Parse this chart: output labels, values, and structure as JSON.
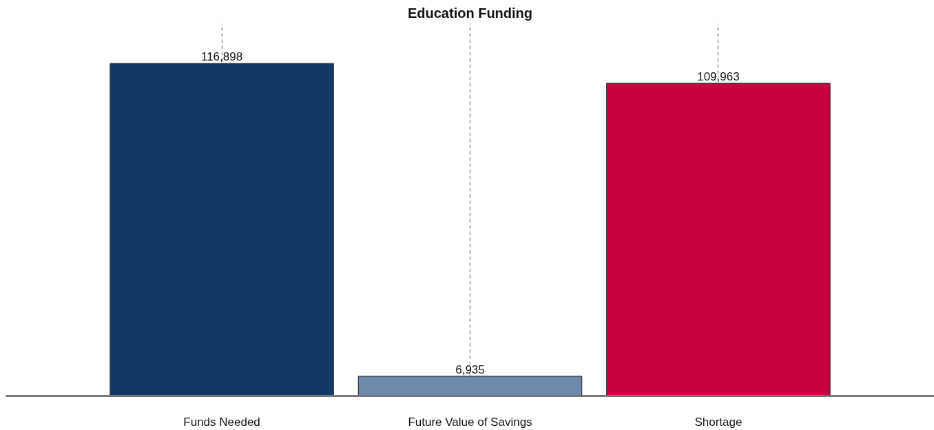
{
  "chart_data": {
    "type": "bar",
    "title": "Education Funding",
    "categories": [
      "Funds Needed",
      "Future Value of Savings",
      "Shortage"
    ],
    "values": [
      116898,
      6935,
      109963
    ],
    "value_labels": [
      "116,898",
      "6,935",
      "109,963"
    ],
    "colors": [
      "#123a66",
      "#7088aa",
      "#c8003f"
    ],
    "grid": "x"
  }
}
